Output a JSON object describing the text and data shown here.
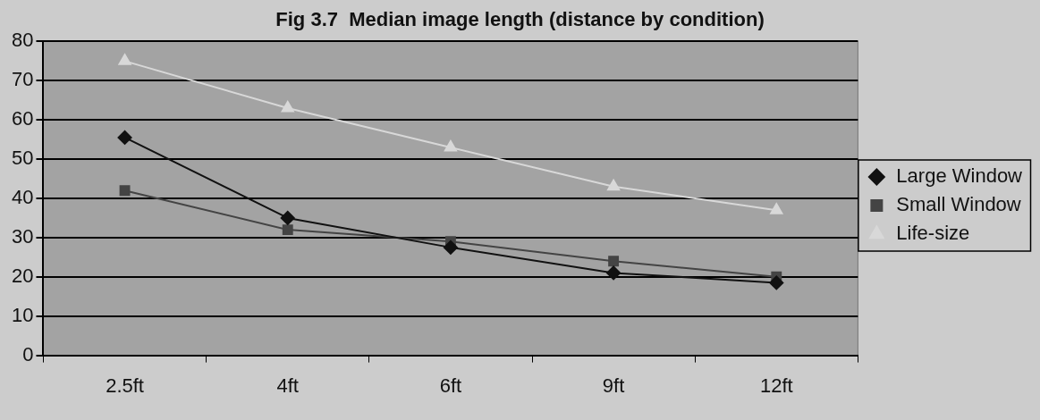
{
  "chart_data": {
    "type": "line",
    "title": "Fig 3.7  Median image length (distance by condition)",
    "categories": [
      "2.5ft",
      "4ft",
      "6ft",
      "9ft",
      "12ft"
    ],
    "series": [
      {
        "name": "Large Window",
        "color": "#111111",
        "values": [
          55.5,
          35,
          27.5,
          21,
          18.5
        ],
        "marker": "diamond"
      },
      {
        "name": "Small Window",
        "color": "#444444",
        "values": [
          42,
          32,
          29,
          24,
          20
        ],
        "marker": "square"
      },
      {
        "name": "Life-size",
        "color": "#d8d8d8",
        "values": [
          75,
          63,
          53,
          43,
          37
        ],
        "marker": "triangle"
      }
    ],
    "ylim": [
      0,
      80
    ],
    "yticks": [
      0,
      10,
      20,
      30,
      40,
      50,
      60,
      70,
      80
    ],
    "grid": "y",
    "legend": "right",
    "line_style": "solid"
  }
}
